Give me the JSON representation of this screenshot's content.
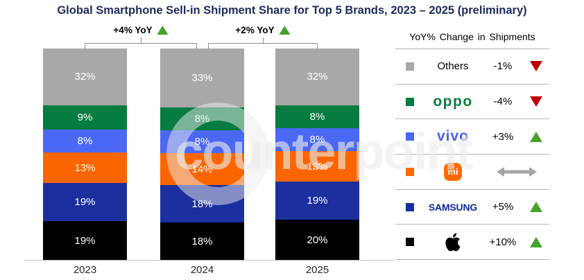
{
  "title": "Global Smartphone Sell-in Shipment Share for Top 5 Brands, 2023 – 2025 (preliminary)",
  "watermark": "counterpoint",
  "annotations": [
    {
      "label": "+4% YoY",
      "between": [
        "2023",
        "2024"
      ],
      "direction": "up"
    },
    {
      "label": "+2% YoY",
      "between": [
        "2024",
        "2025"
      ],
      "direction": "up"
    }
  ],
  "chart_data": {
    "type": "bar",
    "stacked": true,
    "stack_order": "bottom-to-top",
    "categories": [
      "2023",
      "2024",
      "2025"
    ],
    "series": [
      {
        "name": "Apple",
        "color": "#000000",
        "values": [
          19,
          18,
          20
        ]
      },
      {
        "name": "Samsung",
        "color": "#1c2f9f",
        "values": [
          19,
          18,
          19
        ]
      },
      {
        "name": "Xiaomi",
        "color": "#fb6500",
        "values": [
          13,
          14,
          13
        ]
      },
      {
        "name": "vivo",
        "color": "#4a68f4",
        "values": [
          8,
          8,
          8
        ]
      },
      {
        "name": "OPPO",
        "color": "#077c41",
        "values": [
          9,
          8,
          8
        ]
      },
      {
        "name": "Others",
        "color": "#a8a8a8",
        "values": [
          32,
          33,
          32
        ]
      }
    ],
    "unit": "%",
    "ylim": [
      0,
      100
    ],
    "grid": false,
    "legend_position": "right"
  },
  "legend": {
    "header": "YoY% Change in Shipments",
    "rows": [
      {
        "brand": "Others",
        "display": "text",
        "logo_text": "Others",
        "color": "#a8a8a8",
        "value": "-1%",
        "trend": "down"
      },
      {
        "brand": "OPPO",
        "display": "wordmark-oppo",
        "logo_text": "oppo",
        "color": "#077c41",
        "value": "-4%",
        "trend": "down"
      },
      {
        "brand": "vivo",
        "display": "wordmark-vivo",
        "logo_text": "vivo",
        "color": "#4a68f4",
        "value": "+3%",
        "trend": "up"
      },
      {
        "brand": "Xiaomi",
        "display": "mi-badge",
        "logo_text": "mi",
        "color": "#ff6900",
        "value": "",
        "trend": "flat"
      },
      {
        "brand": "Samsung",
        "display": "wordmark-samsung",
        "logo_text": "SAMSUNG",
        "color": "#1c2f9f",
        "value": "+5%",
        "trend": "up"
      },
      {
        "brand": "Apple",
        "display": "apple-logo",
        "logo_text": "",
        "color": "#000000",
        "value": "+10%",
        "trend": "up"
      }
    ]
  },
  "colors": {
    "title": "#1e2a5c",
    "up": "#45a32b",
    "down": "#c00000",
    "flat": "#a6a6a6"
  }
}
